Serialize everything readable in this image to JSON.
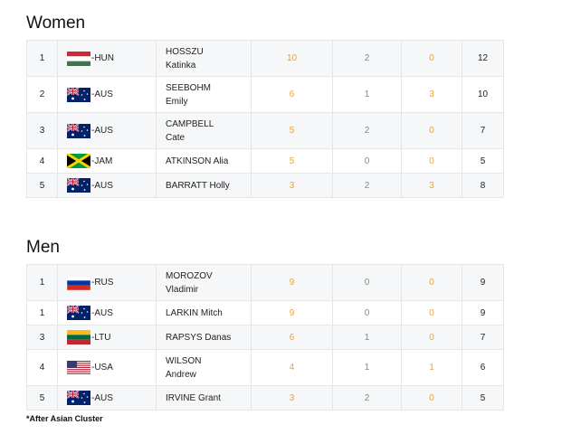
{
  "sections": {
    "women": {
      "title": "Women",
      "rows": [
        {
          "rank": "1",
          "flag": "hun",
          "nation": "-HUN",
          "name_line1": "HOSSZU",
          "name_line2": "Katinka",
          "gold": "10",
          "silver": "2",
          "bronze": "0",
          "total": "12"
        },
        {
          "rank": "2",
          "flag": "aus",
          "nation": "-AUS",
          "name_line1": "SEEBOHM",
          "name_line2": "Emily",
          "gold": "6",
          "silver": "1",
          "bronze": "3",
          "total": "10"
        },
        {
          "rank": "3",
          "flag": "aus",
          "nation": "-AUS",
          "name_line1": "CAMPBELL",
          "name_line2": "Cate",
          "gold": "5",
          "silver": "2",
          "bronze": "0",
          "total": "7"
        },
        {
          "rank": "4",
          "flag": "jam",
          "nation": "-JAM",
          "name_line1": "ATKINSON Alia",
          "name_line2": "",
          "gold": "5",
          "silver": "0",
          "bronze": "0",
          "total": "5"
        },
        {
          "rank": "5",
          "flag": "aus",
          "nation": "-AUS",
          "name_line1": "BARRATT Holly",
          "name_line2": "",
          "gold": "3",
          "silver": "2",
          "bronze": "3",
          "total": "8"
        }
      ]
    },
    "men": {
      "title": "Men",
      "rows": [
        {
          "rank": "1",
          "flag": "rus",
          "nation": "-RUS",
          "name_line1": "MOROZOV",
          "name_line2": "Vladimir",
          "gold": "9",
          "silver": "0",
          "bronze": "0",
          "total": "9"
        },
        {
          "rank": "1",
          "flag": "aus",
          "nation": "-AUS",
          "name_line1": "LARKIN Mitch",
          "name_line2": "",
          "gold": "9",
          "silver": "0",
          "bronze": "0",
          "total": "9"
        },
        {
          "rank": "3",
          "flag": "ltu",
          "nation": "-LTU",
          "name_line1": "RAPSYS Danas",
          "name_line2": "",
          "gold": "6",
          "silver": "1",
          "bronze": "0",
          "total": "7"
        },
        {
          "rank": "4",
          "flag": "usa",
          "nation": "-USA",
          "name_line1": "WILSON",
          "name_line2": "Andrew",
          "gold": "4",
          "silver": "1",
          "bronze": "1",
          "total": "6"
        },
        {
          "rank": "5",
          "flag": "aus",
          "nation": "-AUS",
          "name_line1": "IRVINE Grant",
          "name_line2": "",
          "gold": "3",
          "silver": "2",
          "bronze": "0",
          "total": "5"
        }
      ]
    }
  },
  "footnote": "*After Asian Cluster",
  "colors": {
    "gold_text": "#e8a33d",
    "silver_text": "#888888",
    "row_alt_bg": "#f6f7f8",
    "border": "#e6e6e6"
  }
}
